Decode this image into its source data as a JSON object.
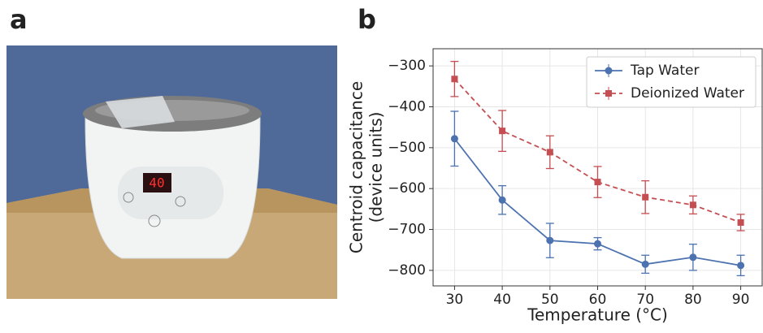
{
  "panel_labels": [
    "a",
    "b"
  ],
  "photo": {
    "display": "40"
  },
  "chart_data": {
    "type": "line",
    "xlabel": "Temperature (°C)",
    "ylabel": [
      "Centroid capacitance",
      "(device units)"
    ],
    "x": [
      30,
      40,
      50,
      60,
      70,
      80,
      90
    ],
    "series": [
      {
        "name": "Tap Water",
        "color": "#4c72b0",
        "marker": "circle",
        "dash": false,
        "values": [
          -478,
          -628,
          -727,
          -735,
          -785,
          -768,
          -788
        ],
        "errors": [
          67,
          35,
          42,
          15,
          22,
          32,
          25
        ]
      },
      {
        "name": "Deionized Water",
        "color": "#c44e52",
        "marker": "square",
        "dash": true,
        "values": [
          -332,
          -459,
          -511,
          -584,
          -621,
          -640,
          -683
        ],
        "errors": [
          43,
          50,
          40,
          38,
          40,
          22,
          20
        ]
      }
    ],
    "xlim": [
      25.5,
      94.5
    ],
    "ylim": [
      -838,
      -258
    ],
    "xticks": [
      30,
      40,
      50,
      60,
      70,
      80,
      90
    ],
    "yticks": [
      {
        "value": -800,
        "label": "−800"
      },
      {
        "value": -700,
        "label": "−700"
      },
      {
        "value": -600,
        "label": "−600"
      },
      {
        "value": -500,
        "label": "−500"
      },
      {
        "value": -400,
        "label": "−400"
      },
      {
        "value": -300,
        "label": "−300"
      }
    ],
    "grid": true,
    "legend": "upper right"
  }
}
